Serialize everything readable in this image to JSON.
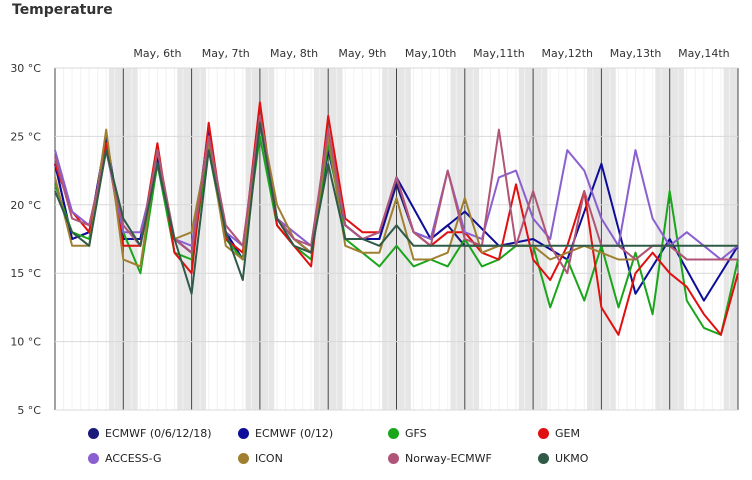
{
  "chart_data": {
    "type": "line",
    "title": "Temperature",
    "y_ticks": [
      "30 °C",
      "25 °C",
      "20 °C",
      "15 °C",
      "10 °C",
      "5 °C"
    ],
    "ylim": [
      5,
      30
    ],
    "xlim": [
      5.0,
      15.0
    ],
    "x_unit": "day of May",
    "x_ticks": [
      {
        "label": "May, 6th",
        "x": 6.0
      },
      {
        "label": "May, 7th",
        "x": 7.0
      },
      {
        "label": "May, 8th",
        "x": 8.0
      },
      {
        "label": "May, 9th",
        "x": 9.0
      },
      {
        "label": "May,10th",
        "x": 10.0
      },
      {
        "label": "May,11th",
        "x": 11.0
      },
      {
        "label": "May,12th",
        "x": 12.0
      },
      {
        "label": "May,13th",
        "x": 13.0
      },
      {
        "label": "May,14th",
        "x": 14.0
      }
    ],
    "grid": true,
    "legend_position": "bottom",
    "series": [
      {
        "name": "ECMWF (0/6/12/18)",
        "color": "#1a1a7a",
        "x": [
          5.0,
          5.25,
          5.5,
          5.75,
          6.0,
          6.25,
          6.5,
          6.75,
          7.0,
          7.25,
          7.5,
          7.75,
          8.0,
          8.25,
          8.5,
          8.75,
          9.0,
          9.25,
          9.5,
          9.75,
          10.0,
          10.25,
          10.5,
          10.75,
          11.0,
          11.25,
          11.5
        ],
        "y": [
          23,
          17.5,
          18,
          25,
          17.5,
          17.5,
          23.5,
          17.5,
          16.5,
          25,
          18,
          16,
          26.5,
          19,
          17.5,
          16.5,
          24,
          18.5,
          17.5,
          17.5,
          21.5,
          18,
          17.5,
          18.5,
          17,
          17,
          17
        ]
      },
      {
        "name": "ECMWF (0/12)",
        "color": "#0d0d99",
        "x": [
          5.0,
          5.25,
          5.5,
          5.75,
          6.0,
          6.25,
          6.5,
          6.75,
          7.0,
          7.25,
          7.5,
          7.75,
          8.0,
          8.25,
          8.5,
          8.75,
          9.0,
          9.25,
          9.5,
          9.75,
          10.0,
          10.5,
          11.0,
          11.5,
          12.0,
          12.5,
          13.0,
          13.5,
          14.0,
          14.5,
          15.0
        ],
        "y": [
          23,
          17.5,
          18,
          25,
          17.5,
          17.5,
          23.5,
          17.5,
          16.5,
          25.5,
          18,
          16,
          26.5,
          19,
          17.5,
          16.5,
          24.5,
          18.5,
          17.5,
          17.5,
          22,
          17.5,
          19.5,
          17,
          17.5,
          16,
          23,
          13.5,
          17.5,
          13,
          17
        ]
      },
      {
        "name": "GFS",
        "color": "#1aa51a",
        "x": [
          5.0,
          5.25,
          5.5,
          5.75,
          6.0,
          6.25,
          6.5,
          6.75,
          7.0,
          7.25,
          7.5,
          7.75,
          8.0,
          8.25,
          8.5,
          8.75,
          9.0,
          9.25,
          9.5,
          9.75,
          10.0,
          10.25,
          10.5,
          10.75,
          11.0,
          11.25,
          11.5,
          11.75,
          12.0,
          12.25,
          12.5,
          12.75,
          13.0,
          13.25,
          13.5,
          13.75,
          14.0,
          14.25,
          14.5,
          14.75,
          15.0
        ],
        "y": [
          21.5,
          18,
          17.5,
          24,
          18,
          15,
          23,
          16.5,
          16,
          24,
          17.5,
          16,
          25,
          18.5,
          17,
          16,
          24.5,
          17.5,
          16.5,
          15.5,
          17,
          15.5,
          16,
          15.5,
          17.5,
          15.5,
          16,
          17,
          17,
          12.5,
          16,
          13,
          17,
          12.5,
          16.5,
          12,
          21,
          13,
          11,
          10.5,
          16
        ]
      },
      {
        "name": "GEM",
        "color": "#e01010",
        "x": [
          5.0,
          5.25,
          5.5,
          5.75,
          6.0,
          6.25,
          6.5,
          6.75,
          7.0,
          7.25,
          7.5,
          7.75,
          8.0,
          8.25,
          8.5,
          8.75,
          9.0,
          9.25,
          9.5,
          9.75,
          10.0,
          10.25,
          10.5,
          10.75,
          11.0,
          11.25,
          11.5,
          11.75,
          12.0,
          12.25,
          12.5,
          12.75,
          13.0,
          13.25,
          13.5,
          13.75,
          14.0,
          14.25,
          14.5,
          14.75,
          15.0
        ],
        "y": [
          23,
          19.5,
          18,
          24.5,
          17,
          17,
          24.5,
          16.5,
          15,
          26,
          17.5,
          16.5,
          27.5,
          18.5,
          17,
          15.5,
          26.5,
          19,
          18,
          18,
          22,
          18,
          17,
          18,
          18,
          16.5,
          16,
          21.5,
          16,
          14.5,
          17,
          21,
          12.5,
          10.5,
          15,
          16.5,
          15,
          14,
          12,
          10.5,
          15
        ]
      },
      {
        "name": "ACCESS-G",
        "color": "#8a5fd0",
        "x": [
          5.0,
          5.25,
          5.5,
          5.75,
          6.0,
          6.25,
          6.5,
          6.75,
          7.0,
          7.25,
          7.5,
          7.75,
          8.0,
          8.25,
          8.5,
          8.75,
          9.0,
          9.25,
          9.5,
          9.75,
          10.0,
          10.25,
          10.5,
          10.75,
          11.0,
          11.25,
          11.5,
          11.75,
          12.0,
          12.25,
          12.5,
          12.75,
          13.0,
          13.25,
          13.5,
          13.75,
          14.0,
          14.25,
          14.5,
          14.75,
          15.0
        ],
        "y": [
          24,
          19.5,
          18.5,
          24,
          18,
          18,
          23,
          17.5,
          17,
          25,
          18,
          17,
          26,
          19,
          18,
          17,
          25,
          18.5,
          17.5,
          18,
          22,
          18,
          17.5,
          22.5,
          18,
          17.5,
          22,
          22.5,
          19,
          17.5,
          24,
          22.5,
          19,
          17,
          24,
          19,
          17,
          18,
          17,
          16,
          17
        ]
      },
      {
        "name": "ICON",
        "color": "#a08030",
        "x": [
          5.0,
          5.25,
          5.5,
          5.75,
          6.0,
          6.25,
          6.5,
          6.75,
          7.0,
          7.25,
          7.5,
          7.75,
          8.0,
          8.25,
          8.5,
          8.75,
          9.0,
          9.25,
          9.5,
          9.75,
          10.0,
          10.25,
          10.5,
          10.75,
          11.0,
          11.25,
          11.5,
          11.75,
          12.0,
          12.25,
          12.5,
          12.75,
          13.0,
          13.25,
          13.5,
          13.75,
          14.0,
          14.25,
          14.5,
          14.75,
          15.0
        ],
        "y": [
          22,
          17,
          17,
          25.5,
          16,
          15.5,
          24,
          17.5,
          18,
          24.5,
          17,
          16,
          26.5,
          20,
          17.5,
          16.5,
          25,
          17,
          16.5,
          16.5,
          20.5,
          16,
          16,
          16.5,
          20.5,
          16.5,
          17,
          17,
          17,
          16,
          16.5,
          17,
          16.5,
          16,
          16,
          17,
          17,
          16,
          16,
          16,
          16
        ]
      },
      {
        "name": "Norway-ECMWF",
        "color": "#b05577",
        "x": [
          5.0,
          5.25,
          5.5,
          5.75,
          6.0,
          6.25,
          6.5,
          6.75,
          7.0,
          7.25,
          7.5,
          7.75,
          8.0,
          8.25,
          8.5,
          8.75,
          9.0,
          9.25,
          9.5,
          9.75,
          10.0,
          10.25,
          10.5,
          10.75,
          11.0,
          11.25,
          11.5,
          11.75,
          12.0,
          12.25,
          12.5,
          12.75,
          13.0,
          13.25,
          13.5,
          13.75,
          14.0,
          14.25,
          14.5,
          14.75,
          15.0
        ],
        "y": [
          23.5,
          19,
          18.5,
          24,
          18.5,
          17,
          24,
          17.5,
          16.5,
          25,
          18.5,
          17,
          26.5,
          19,
          17.5,
          17,
          25.5,
          18.5,
          17.5,
          18,
          22,
          18,
          17,
          22.5,
          17.5,
          17,
          25.5,
          17,
          21,
          17,
          15,
          21,
          17,
          17,
          16,
          17,
          17,
          16,
          16,
          16,
          16
        ]
      },
      {
        "name": "UKMO",
        "color": "#2f5a47",
        "x": [
          5.0,
          5.25,
          5.5,
          5.75,
          6.0,
          6.25,
          6.5,
          6.75,
          7.0,
          7.25,
          7.5,
          7.75,
          8.0,
          8.25,
          8.5,
          8.75,
          9.0,
          9.25,
          9.5,
          9.75,
          10.0,
          10.25,
          10.5,
          10.75,
          11.0,
          11.25,
          11.5,
          11.75,
          12.0,
          12.25,
          12.5,
          12.75,
          13.0,
          13.25,
          13.5,
          13.75,
          14.0,
          14.25,
          14.5,
          14.75,
          15.0
        ],
        "y": [
          21,
          18,
          17,
          24,
          19,
          17,
          23,
          17.5,
          13.5,
          24,
          18,
          14.5,
          26,
          19,
          17,
          16.5,
          23,
          17.5,
          17.5,
          17,
          18.5,
          17,
          17,
          17,
          17,
          17,
          17,
          17,
          17,
          17,
          17,
          17,
          17,
          17,
          17,
          17,
          17,
          17,
          17,
          17,
          17
        ]
      }
    ]
  }
}
